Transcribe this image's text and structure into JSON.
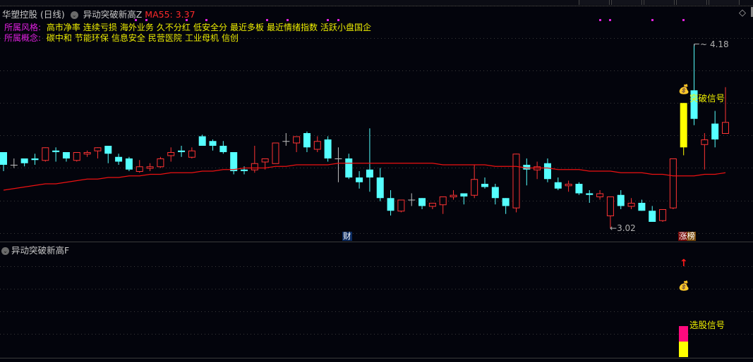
{
  "header": {
    "stock_name": "华塑控股",
    "period": "(日线)",
    "indicator_name": "异动突破新高Z",
    "ma_label": "MA55:",
    "ma_value": "3.37"
  },
  "style_row": {
    "label": "所属风格:",
    "items": [
      "高市净率",
      "连续亏损",
      "海外业务",
      "久不分红",
      "低安全分",
      "最近多板",
      "最近情绪指数",
      "活跃小盘国企"
    ]
  },
  "concept_row": {
    "label": "所属概念:",
    "items": [
      "碳中和",
      "节能环保",
      "信息安全",
      "民营医院",
      "工业母机",
      "信创"
    ]
  },
  "main_chart": {
    "high_label": "4.18",
    "low_label": "3.02",
    "breakout_signal": "突破信号",
    "finance_marker": "财",
    "limit_up_marker": "涨榜",
    "icons": [
      "money-bag-icon",
      "diamond-icon"
    ]
  },
  "sub_panel": {
    "title": "异动突破新高F",
    "select_signal": "选股信号",
    "icons": [
      "red-up-arrow-icon",
      "money-bag-icon"
    ]
  },
  "colors": {
    "up": "#ff3333",
    "down": "#55ffff",
    "flat": "#c0c0c0",
    "limit_up": "#ffff00",
    "ma55": "#ee1111",
    "signal_pink": "#ff0a7e",
    "signal_yellow": "#ffff00",
    "tag_magenta": "#e020e0"
  },
  "chart_data": {
    "type": "candlestick",
    "ylim": [
      2.94,
      4.46
    ],
    "grid": true,
    "fields": [
      "open",
      "high",
      "low",
      "close"
    ],
    "candles": [
      [
        3.5,
        3.5,
        3.38,
        3.42
      ],
      [
        3.42,
        3.46,
        3.4,
        3.42
      ],
      [
        3.46,
        3.46,
        3.41,
        3.43
      ],
      [
        3.46,
        3.49,
        3.42,
        3.45
      ],
      [
        3.45,
        3.53,
        3.44,
        3.53
      ],
      [
        3.51,
        3.53,
        3.44,
        3.5
      ],
      [
        3.5,
        3.5,
        3.44,
        3.46
      ],
      [
        3.45,
        3.5,
        3.44,
        3.5
      ],
      [
        3.49,
        3.51,
        3.47,
        3.5
      ],
      [
        3.51,
        3.53,
        3.46,
        3.53
      ],
      [
        3.54,
        3.54,
        3.43,
        3.49
      ],
      [
        3.47,
        3.49,
        3.42,
        3.44
      ],
      [
        3.46,
        3.47,
        3.38,
        3.39
      ],
      [
        3.38,
        3.45,
        3.37,
        3.41
      ],
      [
        3.4,
        3.43,
        3.38,
        3.41
      ],
      [
        3.41,
        3.47,
        3.4,
        3.46
      ],
      [
        3.48,
        3.53,
        3.44,
        3.5
      ],
      [
        3.51,
        3.54,
        3.47,
        3.5
      ],
      [
        3.47,
        3.53,
        3.46,
        3.51
      ],
      [
        3.6,
        3.61,
        3.54,
        3.54
      ],
      [
        3.57,
        3.58,
        3.51,
        3.54
      ],
      [
        3.54,
        3.57,
        3.49,
        3.5
      ],
      [
        3.5,
        3.5,
        3.36,
        3.38
      ],
      [
        3.39,
        3.41,
        3.36,
        3.38
      ],
      [
        3.39,
        3.54,
        3.37,
        3.43
      ],
      [
        3.44,
        3.46,
        3.39,
        3.46
      ],
      [
        3.43,
        3.56,
        3.43,
        3.56
      ],
      [
        3.57,
        3.62,
        3.54,
        3.57
      ],
      [
        3.56,
        3.6,
        3.5,
        3.6
      ],
      [
        3.62,
        3.63,
        3.5,
        3.53
      ],
      [
        3.52,
        3.6,
        3.5,
        3.57
      ],
      [
        3.58,
        3.6,
        3.44,
        3.46
      ],
      [
        3.46,
        3.53,
        3.31,
        3.46
      ],
      [
        3.46,
        3.49,
        3.33,
        3.34
      ],
      [
        3.34,
        3.38,
        3.27,
        3.31
      ],
      [
        3.39,
        3.65,
        3.25,
        3.34
      ],
      [
        3.34,
        3.4,
        3.19,
        3.21
      ],
      [
        3.21,
        3.26,
        3.1,
        3.13
      ],
      [
        3.13,
        3.2,
        3.12,
        3.2
      ],
      [
        3.2,
        3.24,
        3.16,
        3.2
      ],
      [
        3.21,
        3.21,
        3.14,
        3.16
      ],
      [
        3.16,
        3.18,
        3.14,
        3.18
      ],
      [
        3.17,
        3.22,
        3.11,
        3.22
      ],
      [
        3.22,
        3.26,
        3.2,
        3.23
      ],
      [
        3.24,
        3.24,
        3.17,
        3.22
      ],
      [
        3.23,
        3.42,
        3.21,
        3.33
      ],
      [
        3.3,
        3.34,
        3.27,
        3.28
      ],
      [
        3.28,
        3.3,
        3.17,
        3.21
      ],
      [
        3.21,
        3.21,
        3.11,
        3.16
      ],
      [
        3.15,
        3.49,
        3.12,
        3.49
      ],
      [
        3.42,
        3.46,
        3.29,
        3.39
      ],
      [
        3.39,
        3.44,
        3.33,
        3.41
      ],
      [
        3.43,
        3.46,
        3.31,
        3.33
      ],
      [
        3.31,
        3.34,
        3.26,
        3.27
      ],
      [
        3.29,
        3.32,
        3.25,
        3.3
      ],
      [
        3.3,
        3.31,
        3.23,
        3.24
      ],
      [
        3.24,
        3.26,
        3.18,
        3.23
      ],
      [
        3.22,
        3.26,
        3.2,
        3.24
      ],
      [
        3.1,
        3.22,
        3.02,
        3.22
      ],
      [
        3.23,
        3.26,
        3.14,
        3.16
      ],
      [
        3.16,
        3.21,
        3.14,
        3.18
      ],
      [
        3.18,
        3.2,
        3.13,
        3.13
      ],
      [
        3.13,
        3.16,
        3.06,
        3.06
      ],
      [
        3.07,
        3.14,
        3.06,
        3.14
      ],
      [
        3.15,
        3.46,
        3.14,
        3.46
      ],
      [
        3.53,
        3.81,
        3.48,
        3.81
      ],
      [
        3.89,
        4.18,
        3.67,
        3.71
      ],
      [
        3.55,
        3.62,
        3.39,
        3.58
      ],
      [
        3.68,
        3.76,
        3.53,
        3.58
      ],
      [
        3.62,
        3.91,
        3.62,
        3.69
      ]
    ],
    "limit_up_index": 65,
    "ma55": [
      3.26,
      3.27,
      3.28,
      3.29,
      3.3,
      3.3,
      3.31,
      3.32,
      3.33,
      3.33,
      3.34,
      3.34,
      3.35,
      3.35,
      3.36,
      3.36,
      3.37,
      3.37,
      3.37,
      3.38,
      3.38,
      3.39,
      3.39,
      3.4,
      3.4,
      3.4,
      3.41,
      3.41,
      3.42,
      3.42,
      3.42,
      3.42,
      3.43,
      3.43,
      3.43,
      3.43,
      3.43,
      3.43,
      3.43,
      3.43,
      3.43,
      3.43,
      3.42,
      3.42,
      3.42,
      3.42,
      3.42,
      3.41,
      3.41,
      3.41,
      3.4,
      3.4,
      3.4,
      3.39,
      3.39,
      3.39,
      3.38,
      3.38,
      3.38,
      3.37,
      3.37,
      3.37,
      3.36,
      3.36,
      3.35,
      3.35,
      3.35,
      3.36,
      3.36,
      3.37
    ]
  }
}
